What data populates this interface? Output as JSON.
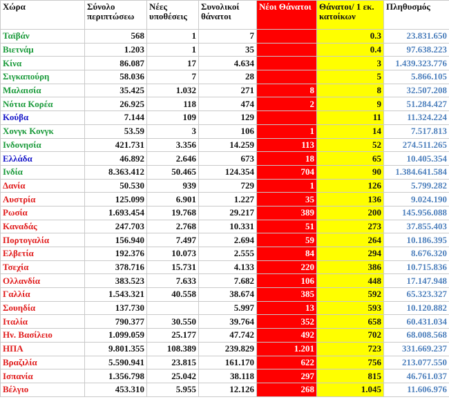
{
  "headers": {
    "country": "Χώρα",
    "total_cases": "Σύνολο περιπτώσεω",
    "new_cases": "Νέες υποθέσεις",
    "total_deaths": "Συνολικοί θάνατοι",
    "new_deaths": "Νέοι Θάνατοι",
    "deaths_per_million": "Θάνατοι/ 1 εκ. κατοίκων",
    "population": "Πληθυσμός"
  },
  "colors": {
    "green": "#1a9a3a",
    "blue": "#1515c8",
    "red": "#e01a1a",
    "red_fill": "#ff0000",
    "yellow_fill": "#ffff00",
    "population_text": "#4f81bd"
  },
  "rows": [
    {
      "country": "Ταϊβάν",
      "color": "green",
      "total_cases": "568",
      "new_cases": "1",
      "total_deaths": "7",
      "new_deaths": "",
      "deaths_per_million": "0.3",
      "population": "23.831.650"
    },
    {
      "country": "Βιετνάμ",
      "color": "green",
      "total_cases": "1.203",
      "new_cases": "1",
      "total_deaths": "35",
      "new_deaths": "",
      "deaths_per_million": "0.4",
      "population": "97.638.223"
    },
    {
      "country": "Κίνα",
      "color": "green",
      "total_cases": "86.087",
      "new_cases": "17",
      "total_deaths": "4.634",
      "new_deaths": "",
      "deaths_per_million": "3",
      "population": "1.439.323.776"
    },
    {
      "country": "Σιγκαπούρη",
      "color": "green",
      "total_cases": "58.036",
      "new_cases": "7",
      "total_deaths": "28",
      "new_deaths": "",
      "deaths_per_million": "5",
      "population": "5.866.105"
    },
    {
      "country": "Μαλαισία",
      "color": "green",
      "total_cases": "35.425",
      "new_cases": "1.032",
      "total_deaths": "271",
      "new_deaths": "8",
      "deaths_per_million": "8",
      "population": "32.507.208"
    },
    {
      "country": "Νότια Κορέα",
      "color": "green",
      "total_cases": "26.925",
      "new_cases": "118",
      "total_deaths": "474",
      "new_deaths": "2",
      "deaths_per_million": "9",
      "population": "51.284.427"
    },
    {
      "country": "Κούβα",
      "color": "blue",
      "total_cases": "7.144",
      "new_cases": "109",
      "total_deaths": "129",
      "new_deaths": "",
      "deaths_per_million": "11",
      "population": "11.324.224"
    },
    {
      "country": "Χονγκ Κονγκ",
      "color": "green",
      "total_cases": "53.59",
      "new_cases": "3",
      "total_deaths": "106",
      "new_deaths": "1",
      "deaths_per_million": "14",
      "population": "7.517.813"
    },
    {
      "country": "Ινδονησία",
      "color": "green",
      "total_cases": "421.731",
      "new_cases": "3.356",
      "total_deaths": "14.259",
      "new_deaths": "113",
      "deaths_per_million": "52",
      "population": "274.511.265"
    },
    {
      "country": "Ελλάδα",
      "color": "blue",
      "total_cases": "46.892",
      "new_cases": "2.646",
      "total_deaths": "673",
      "new_deaths": "18",
      "deaths_per_million": "65",
      "population": "10.405.354"
    },
    {
      "country": "Ινδία",
      "color": "green",
      "total_cases": "8.363.412",
      "new_cases": "50.465",
      "total_deaths": "124.354",
      "new_deaths": "704",
      "deaths_per_million": "90",
      "population": "1.384.641.584"
    },
    {
      "country": "Δανία",
      "color": "red",
      "total_cases": "50.530",
      "new_cases": "939",
      "total_deaths": "729",
      "new_deaths": "1",
      "deaths_per_million": "126",
      "population": "5.799.282"
    },
    {
      "country": "Αυστρία",
      "color": "red",
      "total_cases": "125.099",
      "new_cases": "6.901",
      "total_deaths": "1.227",
      "new_deaths": "35",
      "deaths_per_million": "136",
      "population": "9.024.190"
    },
    {
      "country": "Ρωσία",
      "color": "red",
      "total_cases": "1.693.454",
      "new_cases": "19.768",
      "total_deaths": "29.217",
      "new_deaths": "389",
      "deaths_per_million": "200",
      "population": "145.956.088"
    },
    {
      "country": "Καναδάς",
      "color": "red",
      "total_cases": "247.703",
      "new_cases": "2.768",
      "total_deaths": "10.331",
      "new_deaths": "51",
      "deaths_per_million": "273",
      "population": "37.855.403"
    },
    {
      "country": "Πορτογαλία",
      "color": "red",
      "total_cases": "156.940",
      "new_cases": "7.497",
      "total_deaths": "2.694",
      "new_deaths": "59",
      "deaths_per_million": "264",
      "population": "10.186.395"
    },
    {
      "country": "Ελβετία",
      "color": "red",
      "total_cases": "192.376",
      "new_cases": "10.073",
      "total_deaths": "2.555",
      "new_deaths": "84",
      "deaths_per_million": "294",
      "population": "8.676.320"
    },
    {
      "country": "Τσεχία",
      "color": "red",
      "total_cases": "378.716",
      "new_cases": "15.731",
      "total_deaths": "4.133",
      "new_deaths": "220",
      "deaths_per_million": "386",
      "population": "10.715.836"
    },
    {
      "country": "Ολλανδία",
      "color": "red",
      "total_cases": "383.523",
      "new_cases": "7.633",
      "total_deaths": "7.682",
      "new_deaths": "106",
      "deaths_per_million": "448",
      "population": "17.147.948"
    },
    {
      "country": "Γαλλία",
      "color": "red",
      "total_cases": "1.543.321",
      "new_cases": "40.558",
      "total_deaths": "38.674",
      "new_deaths": "385",
      "deaths_per_million": "592",
      "population": "65.323.327"
    },
    {
      "country": "Σουηδία",
      "color": "red",
      "total_cases": "137.730",
      "new_cases": "",
      "total_deaths": "5.997",
      "new_deaths": "13",
      "deaths_per_million": "593",
      "population": "10.120.882"
    },
    {
      "country": "Ιταλία",
      "color": "red",
      "total_cases": "790.377",
      "new_cases": "30.550",
      "total_deaths": "39.764",
      "new_deaths": "352",
      "deaths_per_million": "658",
      "population": "60.431.034"
    },
    {
      "country": "Ην. Βασίλειο",
      "color": "red",
      "total_cases": "1.099.059",
      "new_cases": "25.177",
      "total_deaths": "47.742",
      "new_deaths": "492",
      "deaths_per_million": "702",
      "population": "68.008.568"
    },
    {
      "country": "ΗΠΑ",
      "color": "red",
      "total_cases": "9.801.355",
      "new_cases": "108.389",
      "total_deaths": "239.829",
      "new_deaths": "1.201",
      "deaths_per_million": "723",
      "population": "331.669.237"
    },
    {
      "country": "Βραζιλία",
      "color": "red",
      "total_cases": "5.590.941",
      "new_cases": "23.815",
      "total_deaths": "161.170",
      "new_deaths": "622",
      "deaths_per_million": "756",
      "population": "213.077.550"
    },
    {
      "country": "Ισπανία",
      "color": "red",
      "total_cases": "1.356.798",
      "new_cases": "25.042",
      "total_deaths": "38.118",
      "new_deaths": "297",
      "deaths_per_million": "815",
      "population": "46.761.037"
    },
    {
      "country": "Βέλγιο",
      "color": "red",
      "total_cases": "453.310",
      "new_cases": "5.955",
      "total_deaths": "12.126",
      "new_deaths": "268",
      "deaths_per_million": "1.045",
      "population": "11.606.976"
    }
  ]
}
